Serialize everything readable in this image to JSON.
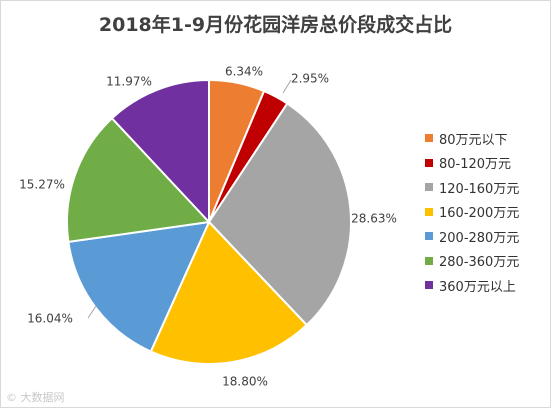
{
  "chart_data": {
    "type": "pie",
    "title": "2018年1-9月份花园洋房总价段成交占比",
    "categories": [
      "80万元以下",
      "80-120万元",
      "120-160万元",
      "160-200万元",
      "200-280万元",
      "280-360万元",
      "360万元以上"
    ],
    "values": [
      6.34,
      2.95,
      28.63,
      18.8,
      16.04,
      15.27,
      11.97
    ],
    "data_labels": [
      "6.34%",
      "2.95%",
      "28.63%",
      "18.80%",
      "16.04%",
      "15.27%",
      "11.97%"
    ],
    "colors": [
      "#ED7D31",
      "#C00000",
      "#A5A5A5",
      "#FFC000",
      "#5B9BD5",
      "#70AD47",
      "#7030A0"
    ],
    "legend_position": "right"
  },
  "watermark": {
    "text": "© 大数据网"
  }
}
